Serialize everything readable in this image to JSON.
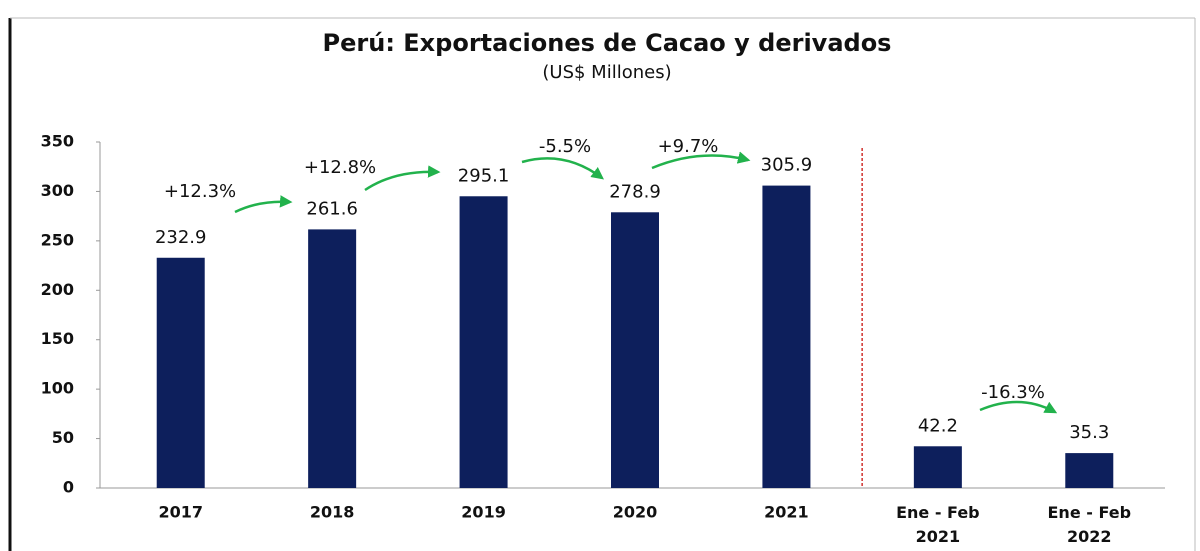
{
  "chart_data": {
    "type": "bar",
    "title": "Perú: Exportaciones de Cacao y derivados",
    "subtitle": "(US$ Millones)",
    "categories": [
      "2017",
      "2018",
      "2019",
      "2020",
      "2021",
      "Ene - Feb 2021",
      "Ene - Feb 2022"
    ],
    "values": [
      232.9,
      261.6,
      295.1,
      278.9,
      305.9,
      42.2,
      35.3
    ],
    "color": "#0d1f5c",
    "ylim": [
      0,
      350
    ],
    "yticks": [
      0,
      50,
      100,
      150,
      200,
      250,
      300,
      350
    ],
    "grid": false,
    "annotations": [
      "+12.3%",
      "+12.8%",
      "-5.5%",
      "+9.7%",
      "-16.3%"
    ],
    "annotation_color": "#22b24c",
    "separator_color": "#d0312d"
  }
}
